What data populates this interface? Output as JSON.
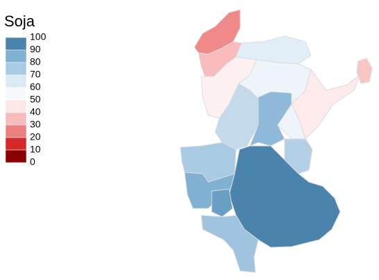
{
  "legend": {
    "title": "Soja",
    "breaks": [
      100,
      90,
      80,
      70,
      60,
      50,
      40,
      30,
      20,
      10,
      0
    ],
    "colors": [
      "#4a84ad",
      "#80b0d2",
      "#a9cae3",
      "#d9eaf5",
      "#f6f9fc",
      "#fde8e8",
      "#f8baba",
      "#ec8080",
      "#d42a2a",
      "#8b0000"
    ]
  }
}
